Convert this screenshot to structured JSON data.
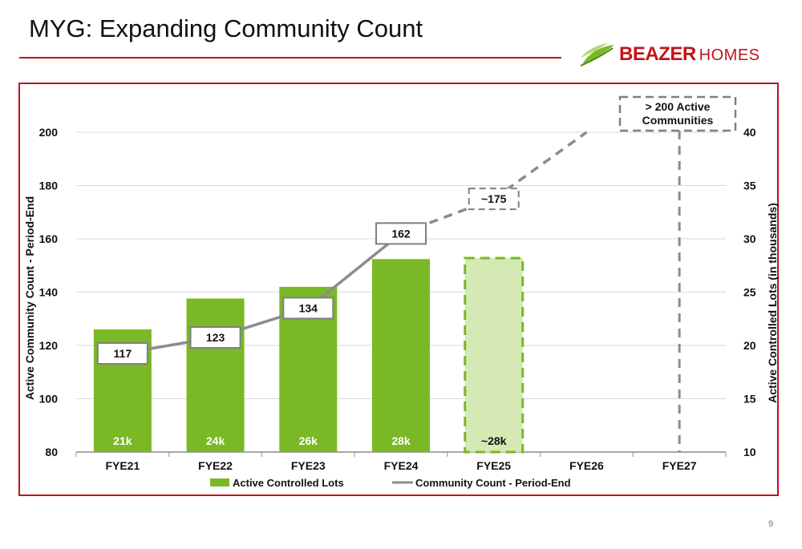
{
  "slide": {
    "title": "MYG: Expanding Community Count",
    "page_number": "9"
  },
  "logo": {
    "brand": "BEAZER",
    "suffix": "HOMES",
    "icon": "leaf-icon",
    "color": "#c0141b"
  },
  "colors": {
    "accent": "#c0141b",
    "bar": "#7ab826",
    "bar_projected_fill": "#d4e9b4",
    "line": "#8c8c8c"
  },
  "chart_data": {
    "type": "bar",
    "categories": [
      "FYE21",
      "FYE22",
      "FYE23",
      "FYE24",
      "FYE25",
      "FYE26",
      "FYE27"
    ],
    "y_left": {
      "label": "Active Community Count - Period-End",
      "range": [
        80,
        200
      ],
      "ticks": [
        80,
        100,
        120,
        140,
        160,
        180,
        200
      ]
    },
    "y_right": {
      "label": "Active Controlled Lots (in thousands)",
      "range": [
        10,
        40
      ],
      "ticks": [
        10,
        15,
        20,
        25,
        30,
        35,
        40
      ]
    },
    "grid": true,
    "legend_position": "bottom",
    "series": [
      {
        "name": "Active Controlled Lots",
        "type": "bar",
        "axis": "right",
        "values": [
          21.5,
          24.4,
          25.5,
          28.1,
          28.2,
          null,
          null
        ],
        "labels": [
          "21k",
          "24k",
          "26k",
          "28k",
          "~28k",
          "",
          ""
        ],
        "projected": [
          false,
          false,
          false,
          false,
          true,
          false,
          false
        ]
      },
      {
        "name": "Community Count - Period-End",
        "type": "line",
        "axis": "left",
        "values": [
          117,
          123,
          134,
          162,
          175,
          200,
          null
        ],
        "labels": [
          "117",
          "123",
          "134",
          "162",
          "~175",
          "",
          ""
        ],
        "projected": [
          false,
          false,
          false,
          false,
          true,
          true,
          false
        ]
      }
    ],
    "annotations": [
      {
        "text_line1": "> 200 Active",
        "text_line2": "Communities",
        "category": "FYE27"
      }
    ]
  }
}
